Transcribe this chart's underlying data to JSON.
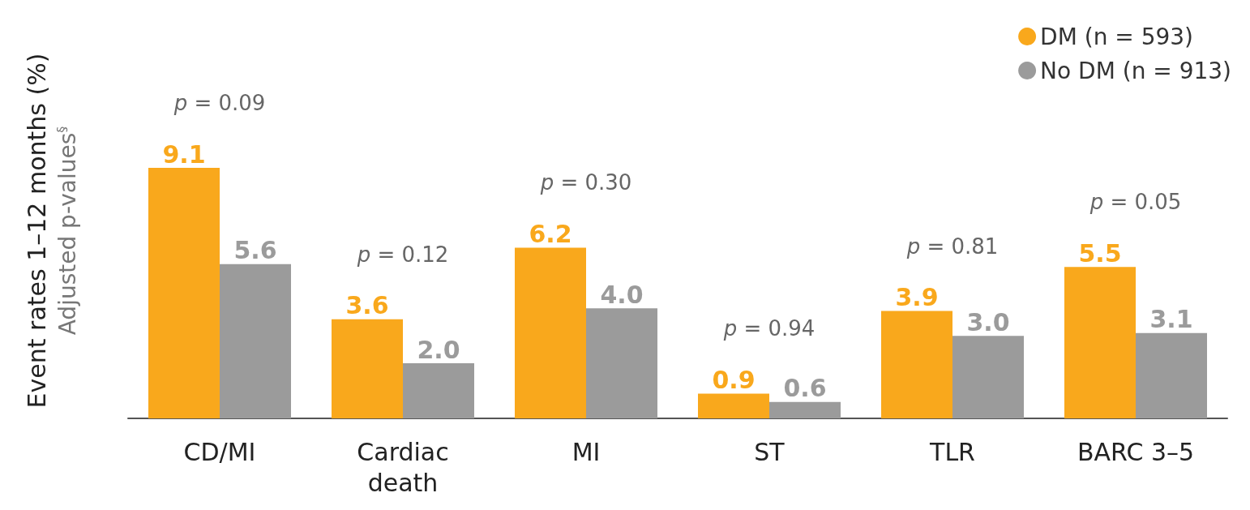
{
  "chart_data": {
    "type": "bar",
    "ylabel": "Event rates 1–12 months (%)",
    "categories": [
      "CD/MI",
      "Cardiac\ndeath",
      "MI",
      "ST",
      "TLR",
      "BARC 3–5"
    ],
    "series": [
      {
        "name": "DM (n = 593)",
        "color": "#f9a81c",
        "values": [
          9.1,
          3.6,
          6.2,
          0.9,
          3.9,
          5.5
        ],
        "value_labels": [
          "9.1",
          "3.6",
          "6.2",
          "0.9",
          "3.9",
          "5.5"
        ]
      },
      {
        "name": "No DM (n = 913)",
        "color": "#9b9b9b",
        "values": [
          5.6,
          2.0,
          4.0,
          0.6,
          3.0,
          3.1
        ],
        "value_labels": [
          "5.6",
          "2.0",
          "4.0",
          "0.6",
          "3.0",
          "3.1"
        ]
      }
    ],
    "legend": "top right",
    "annotations": [
      "Adjusted $^{}$p-values$^{§}$",
      "p = 0.09",
      "p = 0.12",
      "p = 0.30",
      "p = 0.94",
      "p = 0.81",
      "p = 0.05"
    ]
  }
}
